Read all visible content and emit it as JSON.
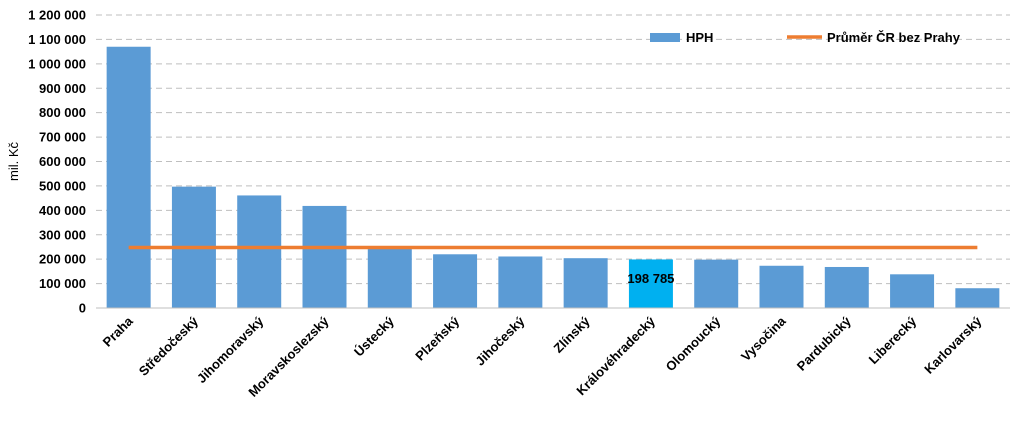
{
  "chart_data": {
    "type": "bar",
    "ylabel": "mil. Kč",
    "ylim": [
      0,
      1200000
    ],
    "yticks": [
      0,
      100000,
      200000,
      300000,
      400000,
      500000,
      600000,
      700000,
      800000,
      900000,
      1000000,
      1100000,
      1200000
    ],
    "ytick_labels": [
      "0",
      "100 000",
      "200 000",
      "300 000",
      "400 000",
      "500 000",
      "600 000",
      "700 000",
      "800 000",
      "900 000",
      "1 000 000",
      "1 100 000",
      "1 200 000"
    ],
    "grid": true,
    "legend_position": "top-right",
    "categories": [
      "Praha",
      "Středočeský",
      "Jihomoravský",
      "Moravskoslezský",
      "Ústecký",
      "Plzeňský",
      "Jihočeský",
      "Zlínský",
      "Královéhradecký",
      "Olomoucký",
      "Vysočina",
      "Pardubický",
      "Liberecký",
      "Karlovarský"
    ],
    "series": [
      {
        "name": "HPH",
        "kind": "bar",
        "color": "#5b9bd5",
        "highlight_color": "#00b0f0",
        "highlight_category": "Královéhradecký",
        "values": [
          1070000,
          497000,
          461000,
          418000,
          253000,
          220000,
          211000,
          204000,
          198785,
          198000,
          173000,
          168000,
          138000,
          81000
        ]
      },
      {
        "name": "Průměr ČR bez Prahy",
        "kind": "line",
        "color": "#ed7d31",
        "value": 248000
      }
    ],
    "annotations": [
      {
        "category": "Královéhradecký",
        "text": "198 785"
      }
    ]
  }
}
